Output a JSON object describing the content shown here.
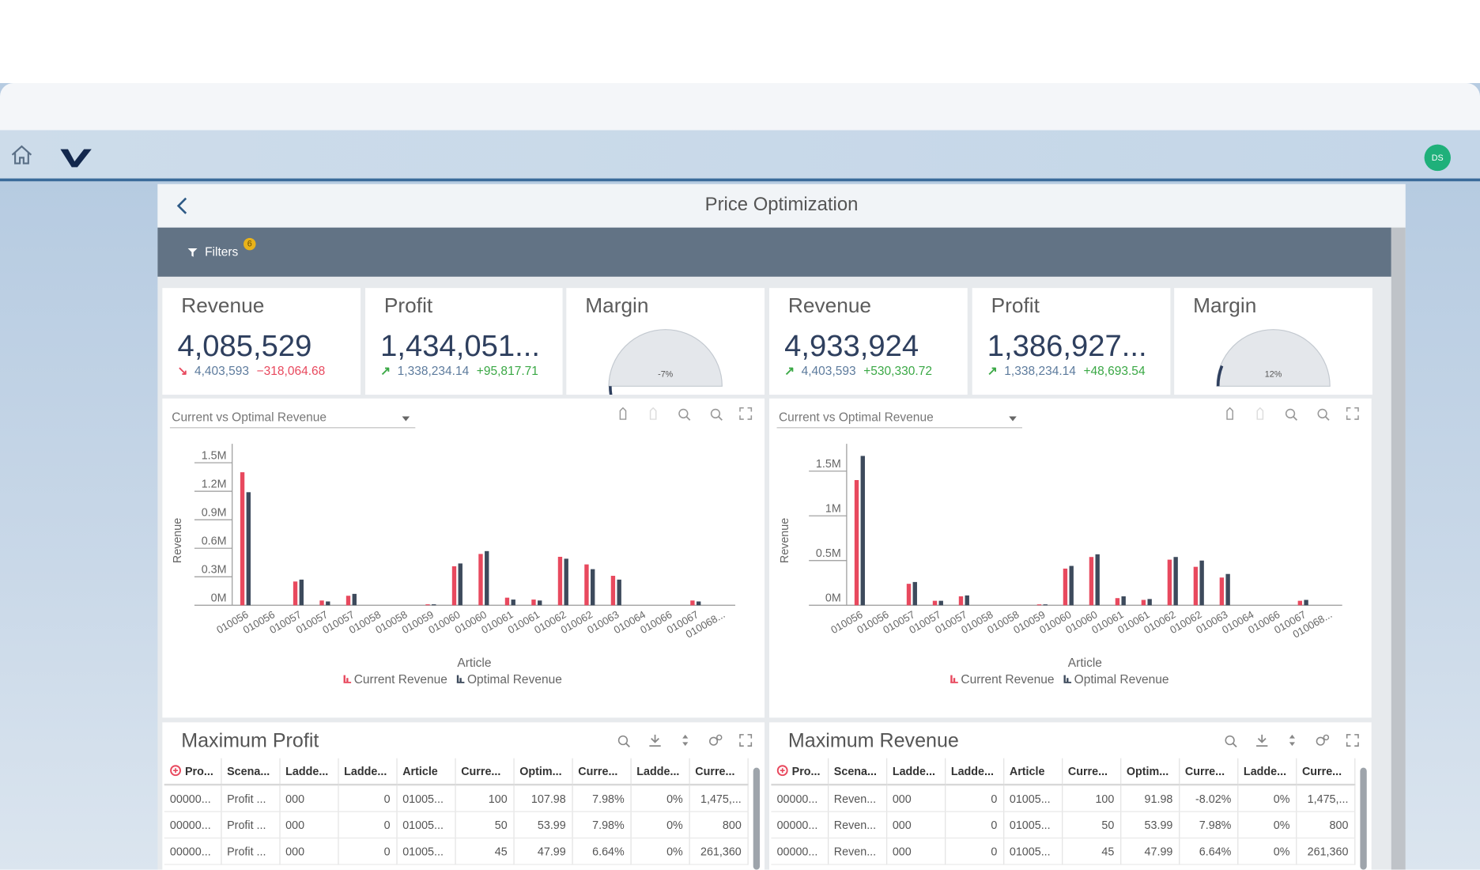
{
  "nav": {
    "avatar": "DS"
  },
  "page": {
    "title": "Price Optimization",
    "filters_label": "Filters",
    "filters_badge": "6"
  },
  "kpis": [
    {
      "title": "Revenue",
      "value": "4,085,529",
      "baseline": "4,403,593",
      "delta": "−318,064.68",
      "trend": "down"
    },
    {
      "title": "Profit",
      "value": "1,434,051...",
      "baseline": "1,338,234.14",
      "delta": "+95,817.71",
      "trend": "up"
    },
    {
      "title": "Margin",
      "gauge": -7,
      "gauge_label": "-7%"
    },
    {
      "title": "Revenue",
      "value": "4,933,924",
      "baseline": "4,403,593",
      "delta": "+530,330.72",
      "trend": "up"
    },
    {
      "title": "Profit",
      "value": "1,386,927...",
      "baseline": "1,338,234.14",
      "delta": "+48,693.54",
      "trend": "up"
    },
    {
      "title": "Margin",
      "gauge": 12,
      "gauge_label": "12%"
    }
  ],
  "charts": [
    {
      "type": "bar",
      "dropdown": "Current vs Optimal Revenue",
      "y_label": "Revenue",
      "x_label": "Article",
      "categories": [
        "010056",
        "010056",
        "010057",
        "010057",
        "010057",
        "010058",
        "010058",
        "010059",
        "010060",
        "010060",
        "010061",
        "010061",
        "010062",
        "010062",
        "010063",
        "010064",
        "010066",
        "010067",
        "010068..."
      ],
      "series": [
        {
          "name": "Current Revenue",
          "color": "#e8495e",
          "values": [
            1400000,
            0,
            250000,
            50000,
            100000,
            0,
            0,
            10000,
            410000,
            540000,
            80000,
            60000,
            510000,
            430000,
            310000,
            0,
            0,
            50000,
            0
          ]
        },
        {
          "name": "Optimal Revenue",
          "color": "#3d4a5c",
          "values": [
            1190000,
            0,
            270000,
            40000,
            120000,
            0,
            0,
            10000,
            440000,
            570000,
            60000,
            50000,
            490000,
            380000,
            270000,
            0,
            0,
            40000,
            0
          ]
        }
      ],
      "ylim": [
        0,
        1600000
      ],
      "yticks": [
        {
          "value": 0,
          "label": "0M"
        },
        {
          "value": 300000,
          "label": "0.3M"
        },
        {
          "value": 600000,
          "label": "0.6M"
        },
        {
          "value": 900000,
          "label": "0.9M"
        },
        {
          "value": 1200000,
          "label": "1.2M"
        },
        {
          "value": 1500000,
          "label": "1.5M"
        }
      ]
    },
    {
      "type": "bar",
      "dropdown": "Current vs Optimal Revenue",
      "y_label": "Revenue",
      "x_label": "Article",
      "categories": [
        "010056",
        "010056",
        "010057",
        "010057",
        "010057",
        "010058",
        "010058",
        "010059",
        "010060",
        "010060",
        "010061",
        "010061",
        "010062",
        "010062",
        "010063",
        "010064",
        "010066",
        "010067",
        "010068..."
      ],
      "series": [
        {
          "name": "Current Revenue",
          "color": "#e8495e",
          "values": [
            1400000,
            0,
            240000,
            50000,
            100000,
            0,
            0,
            10000,
            410000,
            540000,
            80000,
            60000,
            510000,
            430000,
            310000,
            0,
            0,
            50000,
            0
          ]
        },
        {
          "name": "Optimal Revenue",
          "color": "#3d4a5c",
          "values": [
            1670000,
            0,
            260000,
            50000,
            110000,
            0,
            0,
            10000,
            440000,
            570000,
            100000,
            70000,
            540000,
            500000,
            350000,
            0,
            0,
            60000,
            0
          ]
        }
      ],
      "ylim": [
        0,
        1700000
      ],
      "yticks": [
        {
          "value": 0,
          "label": "0M"
        },
        {
          "value": 500000,
          "label": "0.5M"
        },
        {
          "value": 1000000,
          "label": "1M"
        },
        {
          "value": 1500000,
          "label": "1.5M"
        }
      ]
    }
  ],
  "tables": [
    {
      "title": "Maximum Profit",
      "columns": [
        "Pro...",
        "Scena...",
        "Ladde...",
        "Ladde...",
        "Article",
        "Curre...",
        "Optim...",
        "Curre...",
        "Ladde...",
        "Curre..."
      ],
      "rows": [
        [
          "00000...",
          "Profit ...",
          "000",
          "0",
          "01005...",
          "100",
          "107.98",
          "7.98%",
          "0%",
          "1,475,..."
        ],
        [
          "00000...",
          "Profit ...",
          "000",
          "0",
          "01005...",
          "50",
          "53.99",
          "7.98%",
          "0%",
          "800"
        ],
        [
          "00000...",
          "Profit ...",
          "000",
          "0",
          "01005...",
          "45",
          "47.99",
          "6.64%",
          "0%",
          "261,360"
        ]
      ]
    },
    {
      "title": "Maximum Revenue",
      "columns": [
        "Pro...",
        "Scena...",
        "Ladde...",
        "Ladde...",
        "Article",
        "Curre...",
        "Optim...",
        "Curre...",
        "Ladde...",
        "Curre..."
      ],
      "rows": [
        [
          "00000...",
          "Reven...",
          "000",
          "0",
          "01005...",
          "100",
          "91.98",
          "-8.02%",
          "0%",
          "1,475,..."
        ],
        [
          "00000...",
          "Reven...",
          "000",
          "0",
          "01005...",
          "50",
          "53.99",
          "7.98%",
          "0%",
          "800"
        ],
        [
          "00000...",
          "Reven...",
          "000",
          "0",
          "01005...",
          "45",
          "47.99",
          "6.64%",
          "0%",
          "261,360"
        ]
      ]
    }
  ]
}
